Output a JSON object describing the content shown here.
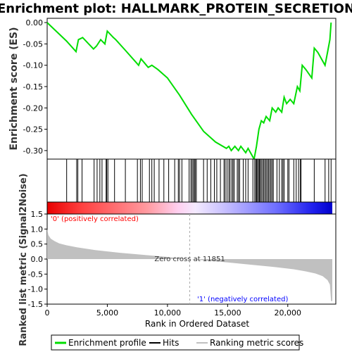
{
  "chart_data": {
    "type": "line",
    "title": "Enrichment plot: HALLMARK_PROTEIN_SECRETION",
    "top_panel": {
      "ylabel": "Enrichment score (ES)",
      "ylim": [
        -0.32,
        0.01
      ],
      "yticks": [
        "0.00",
        "-0.05",
        "-0.10",
        "-0.15",
        "-0.20",
        "-0.25",
        "-0.30"
      ],
      "yticks_values": [
        0.0,
        -0.05,
        -0.1,
        -0.15,
        -0.2,
        -0.25,
        -0.3
      ],
      "series": [
        {
          "name": "Enrichment profile",
          "color": "#00dd00",
          "x": [
            0,
            1600,
            2400,
            2600,
            2950,
            3850,
            4100,
            4450,
            4800,
            5000,
            5500,
            5700,
            6500,
            7600,
            7800,
            8400,
            8700,
            9200,
            10000,
            11000,
            12000,
            13000,
            14000,
            14900,
            15100,
            15300,
            15600,
            15900,
            16100,
            16500,
            16700,
            17200,
            17400,
            17600,
            17800,
            18000,
            18200,
            18500,
            18700,
            19000,
            19200,
            19500,
            19700,
            19900,
            20200,
            20500,
            20800,
            21000,
            21200,
            21500,
            22000,
            22200,
            22500,
            23100,
            23300,
            23500,
            23600
          ],
          "y": [
            0.0,
            -0.043,
            -0.068,
            -0.04,
            -0.035,
            -0.062,
            -0.055,
            -0.04,
            -0.05,
            -0.02,
            -0.035,
            -0.04,
            -0.065,
            -0.1,
            -0.085,
            -0.105,
            -0.1,
            -0.11,
            -0.13,
            -0.17,
            -0.215,
            -0.255,
            -0.28,
            -0.295,
            -0.29,
            -0.3,
            -0.29,
            -0.3,
            -0.29,
            -0.305,
            -0.295,
            -0.32,
            -0.29,
            -0.25,
            -0.23,
            -0.235,
            -0.22,
            -0.23,
            -0.2,
            -0.21,
            -0.2,
            -0.21,
            -0.175,
            -0.19,
            -0.18,
            -0.19,
            -0.15,
            -0.16,
            -0.1,
            -0.11,
            -0.13,
            -0.06,
            -0.07,
            -0.1,
            -0.07,
            -0.04,
            0.0
          ]
        }
      ]
    },
    "hits_panel": {
      "legend": "Hits",
      "hit_positions": [
        1620,
        2450,
        2550,
        2900,
        3900,
        4150,
        4380,
        4560,
        4900,
        4950,
        5050,
        5600,
        6500,
        7500,
        7750,
        7900,
        8500,
        8700,
        8900,
        9300,
        9700,
        10100,
        10600,
        10900,
        11000,
        11200,
        11800,
        11950,
        12050,
        12150,
        12250,
        12300,
        12400,
        13000,
        13300,
        13600,
        13900,
        14100,
        14400,
        14700,
        14800,
        14950,
        15100,
        15200,
        15350,
        15450,
        15550,
        15800,
        15900,
        16000,
        16300,
        16500,
        16700,
        17100,
        17250,
        17350,
        17400,
        17500,
        17550,
        17650,
        17700,
        17800,
        17900,
        18000,
        18100,
        18200,
        18300,
        18400,
        18500,
        18600,
        18700,
        18800,
        19100,
        19300,
        19500,
        19600,
        19700,
        20000,
        20100,
        20500,
        20700,
        20900,
        21050,
        21100,
        22200,
        23100,
        23400,
        23600
      ]
    },
    "bottom_panel": {
      "ylabel": "Ranked list metric (Signal2Noise)",
      "xlabel": "Rank in Ordered Dataset",
      "ylim": [
        -1.5,
        1.5
      ],
      "yticks": [
        "-1.5",
        "-1.0",
        "-0.5",
        "0.0",
        "0.5",
        "1.0",
        "1.5"
      ],
      "yticks_values": [
        -1.5,
        -1.0,
        -0.5,
        0.0,
        0.5,
        1.0,
        1.5
      ],
      "xlim": [
        0,
        23700
      ],
      "xticks": [
        "0",
        "5,000",
        "10,000",
        "15,000",
        "20,000"
      ],
      "xticks_values": [
        0,
        5000,
        10000,
        15000,
        20000
      ],
      "series_name": "Ranking metric scores",
      "metric_x": [
        0,
        100,
        300,
        600,
        1000,
        1600,
        2500,
        4000,
        6000,
        8000,
        10000,
        11851,
        13000,
        15000,
        17000,
        19000,
        20500,
        21500,
        22300,
        22900,
        23300,
        23500,
        23600,
        23700
      ],
      "metric_y": [
        1.0,
        0.8,
        0.68,
        0.6,
        0.52,
        0.46,
        0.39,
        0.3,
        0.21,
        0.14,
        0.07,
        0.0,
        -0.04,
        -0.11,
        -0.19,
        -0.27,
        -0.34,
        -0.41,
        -0.48,
        -0.57,
        -0.7,
        -0.85,
        -1.4,
        -1.4
      ],
      "zero_cross_label": "Zero cross at 11851",
      "zero_cross_rank": 11851,
      "positive_label": "'0' (positively correlated)",
      "negative_label": "'1' (negatively correlated)"
    },
    "legend": {
      "items": [
        {
          "label": "Enrichment profile",
          "color": "#00dd00"
        },
        {
          "label": "Hits",
          "color": "#000000"
        },
        {
          "label": "Ranking metric scores",
          "color": "#c0c0c0"
        }
      ]
    },
    "colors": {
      "profile": "#00dd00",
      "positive": "#ff0000",
      "negative": "#0000ff",
      "metric_fill": "#c0c0c0",
      "zero_line": "#aaaaaa",
      "positive_text": "#ff0000",
      "negative_text": "#0000ff"
    }
  }
}
